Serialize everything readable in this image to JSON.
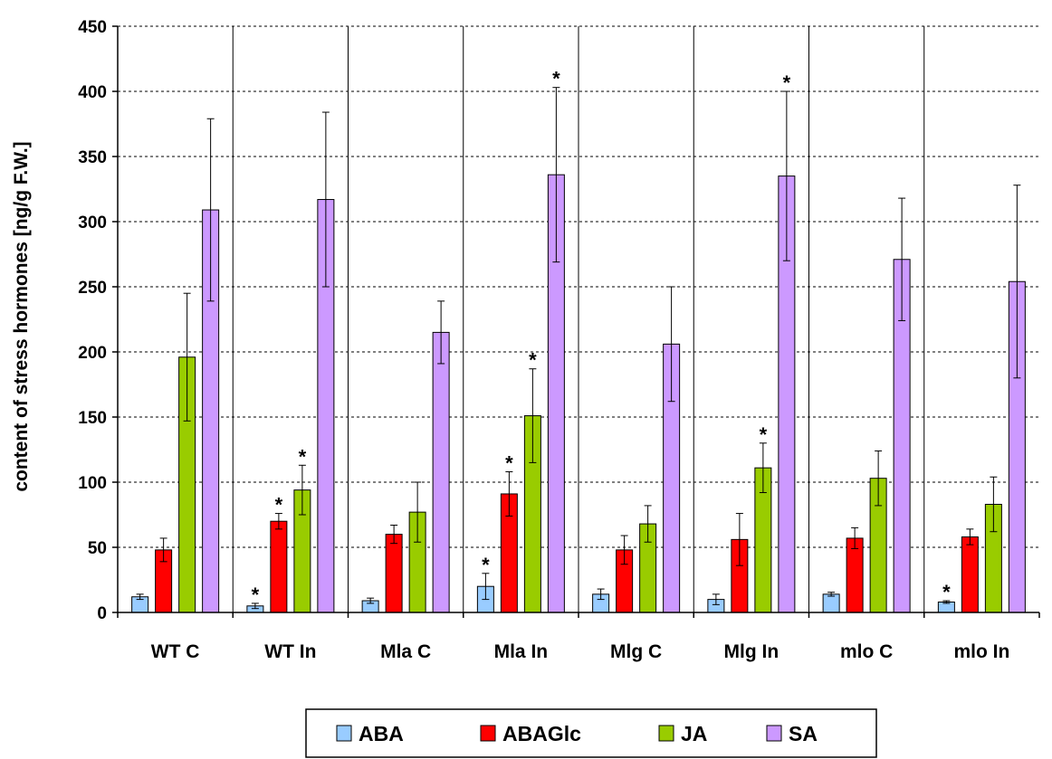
{
  "chart_data": {
    "type": "bar",
    "ylabel": "content of stress hormones [ng/g F.W.]",
    "xlabel": "",
    "ylim": [
      0,
      450
    ],
    "yticks": [
      "0",
      "50",
      "100",
      "150",
      "200",
      "250",
      "300",
      "350",
      "400",
      "450"
    ],
    "grid": "horizontal dashed",
    "legend_position": "bottom",
    "categories": [
      "WT C",
      "WT In",
      "Mla C",
      "Mla In",
      "Mlg C",
      "Mlg In",
      "mlo C",
      "mlo In"
    ],
    "series": [
      {
        "name": "ABA",
        "color": "#99CCFF",
        "values": [
          12,
          5,
          9,
          20,
          14,
          10,
          14,
          8
        ],
        "errors": [
          2,
          2,
          2,
          10,
          4,
          4,
          1.5,
          1
        ],
        "significant": [
          false,
          true,
          false,
          true,
          false,
          false,
          false,
          true
        ]
      },
      {
        "name": "ABAGlc",
        "color": "#FF0000",
        "values": [
          48,
          70,
          60,
          91,
          48,
          56,
          57,
          58
        ],
        "errors": [
          9,
          6,
          7,
          17,
          11,
          20,
          8,
          6
        ],
        "significant": [
          false,
          true,
          false,
          true,
          false,
          false,
          false,
          false
        ]
      },
      {
        "name": "JA",
        "color": "#99CC00",
        "values": [
          196,
          94,
          77,
          151,
          68,
          111,
          103,
          83
        ],
        "errors": [
          49,
          19,
          23,
          36,
          14,
          19,
          21,
          21
        ],
        "significant": [
          false,
          true,
          false,
          true,
          false,
          true,
          false,
          false
        ]
      },
      {
        "name": "SA",
        "color": "#CC99FF",
        "values": [
          309,
          317,
          215,
          336,
          206,
          335,
          271,
          254
        ],
        "errors": [
          70,
          67,
          24,
          67,
          44,
          65,
          47,
          74
        ],
        "significant": [
          false,
          false,
          false,
          true,
          false,
          true,
          false,
          false
        ]
      }
    ],
    "star_symbol": "*"
  }
}
